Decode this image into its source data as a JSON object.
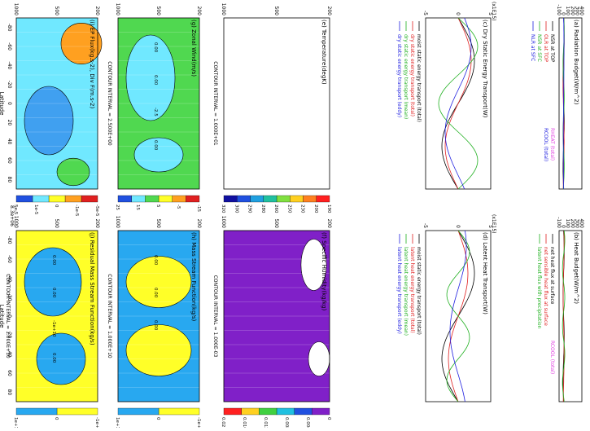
{
  "panels": {
    "a": {
      "title": "(a) Radiation Budget(W/m^2)",
      "yticks": [
        "-100",
        "0",
        "100",
        "200",
        "300",
        "400"
      ],
      "legend": [
        "NSR at TOP",
        "OLR at TOP",
        "NSR at SFC",
        "NLR at SFC"
      ],
      "legend2": [
        "RHEAT (total)",
        "RCOOL (total)"
      ]
    },
    "b": {
      "title": "(b) Heat Budget(W/m^2)",
      "yticks": [
        "-100",
        "0",
        "100",
        "200",
        "300",
        "400"
      ],
      "legend": [
        "net heat flux at surface",
        "net sensible heat flux at surface",
        "latent heat flux with precipitation"
      ],
      "legend2": [
        "RCOOL (total)"
      ]
    },
    "c": {
      "title": "(c) Dry Static Energy Transport(W)",
      "scale": "(x1E15)",
      "yticks": [
        "-5",
        "0",
        "5"
      ],
      "legend": [
        "moist static energy transport (total)",
        "dry static energy transport (total)",
        "dry static energy transport (mean)",
        "dry static energy transport (eddy)"
      ]
    },
    "d": {
      "title": "(d) Latent Heat Transport(W)",
      "scale": "(x1E15)",
      "yticks": [
        "-5",
        "0",
        "5"
      ],
      "legend": [
        "moist static energy transport (total)",
        "latent heat energy transport (total)",
        "latent heat energy transport (mean)",
        "latent heat energy transport (eddy)"
      ]
    },
    "e": {
      "title": "(e) Temperature(degK)",
      "contour": "CONTOUR INTERVAL = 1.000E+01",
      "ylabels": [
        "1000",
        "500",
        "200"
      ],
      "cbar": [
        "190",
        "200",
        "230",
        "250",
        "260",
        "280",
        "290",
        "300",
        "320"
      ]
    },
    "f": {
      "title": "(f) Specific Humidity(kg/kg)",
      "contour": "CONTOUR INTERVAL = 1.000E-03",
      "ylabels": [
        "1000",
        "500",
        "200"
      ],
      "cbar": [
        "0",
        "0.004",
        "0.008",
        "0.012",
        "0.016",
        "0.02"
      ]
    },
    "g": {
      "title": "(g) Zonal Wind(m/s)",
      "contour": "CONTOUR INTERVAL = 2.500E+00",
      "ylabels": [
        "1000",
        "500",
        "200"
      ],
      "clabels": [
        "0.00",
        "0.00",
        "-2.5",
        "0.00"
      ],
      "cbar": [
        "-15",
        "-5",
        "5",
        "15",
        "25"
      ]
    },
    "h": {
      "title": "(h) Mass Stream Function(kg/s)",
      "contour": "CONTOUR INTERVAL = 1.000E+10",
      "ylabels": [
        "1000",
        "500",
        "200"
      ],
      "clabels": [
        "0.00",
        "0.00",
        "0.00"
      ],
      "cbar": [
        "-1e+12",
        "0",
        "1e+12"
      ]
    },
    "i": {
      "title": "(i) EP Flux(kg.s-2), Div F(m.s-2)",
      "ylabels": [
        "1000",
        "500",
        "200"
      ],
      "xlabel": "Latitude",
      "xticks": [
        "-80",
        "-60",
        "-40",
        "-20",
        "0",
        "20",
        "40",
        "60",
        "80"
      ],
      "cbar": [
        "-5e-5",
        "-1e-5",
        "0",
        "1e-5",
        "5e-5"
      ],
      "vector": "8.3e+06"
    },
    "j": {
      "title": "(j) Residual Mass Stream Function(kg/s)",
      "contour": "CONTOUR INTERVAL = 1.000E+10",
      "ylabels": [
        "1000",
        "500",
        "200"
      ],
      "xlabel": "Latitude",
      "xticks": [
        "-80",
        "-60",
        "-40",
        "-20",
        "0",
        "20",
        "40",
        "60",
        "80"
      ],
      "clabels": [
        "0.00",
        "0.00",
        "-1e+10",
        "0.00"
      ],
      "cbar": [
        "-1e+12",
        "0",
        "1e+12"
      ]
    }
  },
  "chart_data": {
    "type": "heatmap",
    "title": "",
    "lat_ticks": [
      -80,
      -60,
      -40,
      -20,
      0,
      20,
      40,
      60,
      80
    ],
    "pressure_ticks": [
      1000,
      500,
      200
    ],
    "colors": {
      "blue": "#28a8f0",
      "yellow": "#ffff28",
      "green": "#50d850",
      "purple": "#8020c8",
      "cyan": "#70e8ff",
      "orange": "#ffa020",
      "red": "#e02020",
      "magenta": "#e040e0"
    }
  }
}
